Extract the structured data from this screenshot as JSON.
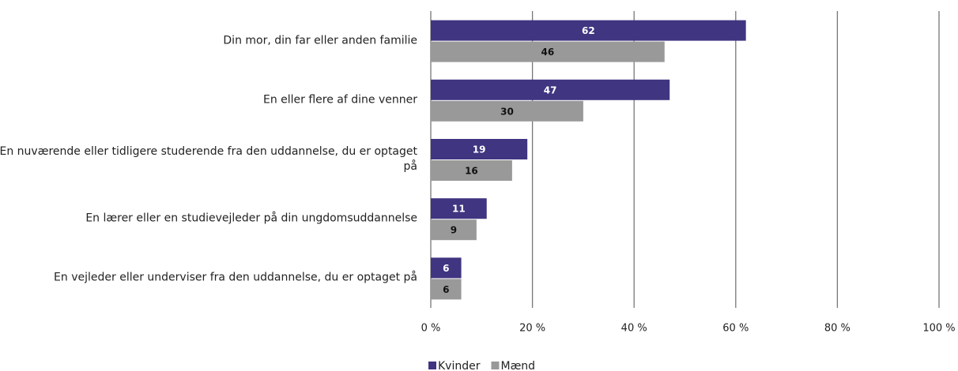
{
  "chart_data": {
    "type": "barh",
    "categories": [
      "Din mor, din far eller anden familie",
      "En eller flere af dine venner",
      "En nuværende eller tidligere studerende fra den uddannelse, du er optaget på",
      "En lærer eller en studievejleder på din ungdomsuddannelse",
      "En vejleder eller underviser fra den uddannelse, du er optaget på"
    ],
    "series": [
      {
        "name": "Kvinder",
        "color": "#3f3580",
        "values": [
          62,
          47,
          19,
          11,
          6
        ]
      },
      {
        "name": "Mænd",
        "color": "#999999",
        "values": [
          46,
          30,
          16,
          9,
          6
        ]
      }
    ],
    "xlim": [
      0,
      100
    ],
    "xticks": [
      {
        "value": 0,
        "label": "0 %"
      },
      {
        "value": 20,
        "label": "20 %"
      },
      {
        "value": 40,
        "label": "40 %"
      },
      {
        "value": 60,
        "label": "60 %"
      },
      {
        "value": 80,
        "label": "80 %"
      },
      {
        "value": 100,
        "label": "100 %"
      }
    ],
    "grid": true,
    "legend": "bottom"
  }
}
